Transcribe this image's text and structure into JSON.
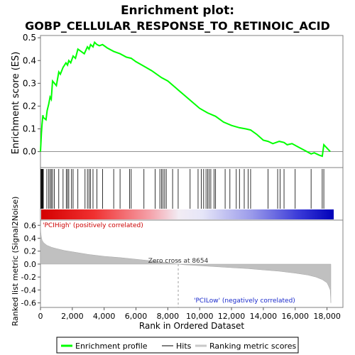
{
  "chart_data": {
    "type": "line",
    "title_line1": "Enrichment plot:",
    "title_line2": "GOBP_CELLULAR_RESPONSE_TO_RETINOIC_ACID",
    "xlabel": "Rank in Ordered Dataset",
    "xlim": [
      0,
      19000
    ],
    "x_ticks": [
      0,
      2000,
      4000,
      6000,
      8000,
      10000,
      12000,
      14000,
      16000,
      18000
    ],
    "x_tick_labels": [
      "0",
      "2,000",
      "4,000",
      "6,000",
      "8,000",
      "10,000",
      "12,000",
      "14,000",
      "16,000",
      "18,000"
    ],
    "es_panel": {
      "ylabel": "Enrichment score (ES)",
      "ylim": [
        -0.07,
        0.51
      ],
      "y_ticks": [
        0.0,
        0.1,
        0.2,
        0.3,
        0.4,
        0.5
      ],
      "y_tick_labels": [
        "0.0",
        "0.1",
        "0.2",
        "0.3",
        "0.4",
        "0.5"
      ],
      "color": "#00ff00",
      "x": [
        0,
        60,
        100,
        150,
        180,
        350,
        420,
        520,
        600,
        680,
        760,
        880,
        1000,
        1150,
        1250,
        1420,
        1600,
        1700,
        1780,
        1900,
        2050,
        2200,
        2350,
        2550,
        2750,
        2950,
        3050,
        3150,
        3300,
        3400,
        3550,
        3700,
        3900,
        4200,
        4600,
        5000,
        5400,
        5700,
        6000,
        6500,
        7000,
        7600,
        8000,
        8500,
        9000,
        9500,
        10000,
        10500,
        11000,
        11500,
        12000,
        12500,
        12900,
        13200,
        13600,
        14000,
        14300,
        14600,
        14800,
        15000,
        15300,
        15500,
        15800,
        16200,
        16600,
        17000,
        17200,
        17500,
        17700,
        17800,
        18000,
        18200
      ],
      "y": [
        0.0,
        0.08,
        0.12,
        0.16,
        0.15,
        0.14,
        0.18,
        0.21,
        0.24,
        0.23,
        0.31,
        0.3,
        0.29,
        0.35,
        0.34,
        0.37,
        0.39,
        0.38,
        0.4,
        0.39,
        0.42,
        0.41,
        0.45,
        0.44,
        0.43,
        0.46,
        0.45,
        0.47,
        0.46,
        0.48,
        0.47,
        0.465,
        0.47,
        0.455,
        0.44,
        0.43,
        0.415,
        0.41,
        0.395,
        0.375,
        0.355,
        0.325,
        0.31,
        0.28,
        0.25,
        0.22,
        0.19,
        0.17,
        0.155,
        0.13,
        0.115,
        0.105,
        0.1,
        0.095,
        0.075,
        0.05,
        0.045,
        0.035,
        0.04,
        0.045,
        0.04,
        0.03,
        0.035,
        0.02,
        0.005,
        -0.01,
        -0.005,
        -0.015,
        -0.02,
        0.03,
        0.015,
        0.0
      ]
    },
    "hits": [
      30,
      60,
      90,
      120,
      150,
      180,
      400,
      520,
      600,
      680,
      760,
      870,
      1150,
      1420,
      1620,
      1700,
      1780,
      1950,
      2050,
      2350,
      2800,
      2950,
      3050,
      3150,
      3300,
      3550,
      3900,
      4600,
      5000,
      5600,
      5700,
      6500,
      7200,
      7500,
      7600,
      7700,
      7800,
      7900,
      8300,
      8650,
      9400,
      9900,
      10100,
      10250,
      10400,
      10500,
      10600,
      10700,
      10900,
      11000,
      11600,
      11900,
      12300,
      12500,
      12800,
      13050,
      13200,
      14300,
      14900,
      15050,
      15300,
      16000,
      17000,
      17700,
      17800
    ],
    "heatmap_colorbar": "red (positive) to blue (negative)",
    "rank_panel": {
      "ylabel": "Ranked list metric (Signal2Noise)",
      "ylim": [
        -0.67,
        0.68
      ],
      "y_ticks": [
        0.6,
        0.4,
        0.2,
        0.0,
        -0.2,
        -0.4,
        -0.6
      ],
      "y_tick_labels": [
        "0.6",
        "0.4",
        "0.2",
        "0.0",
        "-0.2",
        "-0.4",
        "-0.6"
      ],
      "x": [
        0,
        20,
        50,
        100,
        200,
        400,
        700,
        1000,
        1500,
        2000,
        3000,
        4000,
        5000,
        6000,
        7000,
        8000,
        8654,
        9000,
        10000,
        11000,
        12000,
        13000,
        14000,
        15000,
        16000,
        16800,
        17300,
        17700,
        18000,
        18100,
        18200,
        18240
      ],
      "values": [
        0.61,
        0.5,
        0.43,
        0.37,
        0.33,
        0.29,
        0.26,
        0.24,
        0.21,
        0.19,
        0.15,
        0.12,
        0.1,
        0.075,
        0.05,
        0.02,
        0.0,
        -0.01,
        -0.025,
        -0.04,
        -0.055,
        -0.07,
        -0.09,
        -0.11,
        -0.14,
        -0.17,
        -0.2,
        -0.24,
        -0.29,
        -0.34,
        -0.4,
        -0.6
      ],
      "zero_cross_text": "Zero cross at 8654",
      "zero_cross_rank": 8654,
      "pos_label": "'PCIHigh' (positively correlated)",
      "neg_label": "'PCILow' (negatively correlated)"
    },
    "legend": {
      "placement": "bottom",
      "entries": [
        {
          "label": "Enrichment profile",
          "color": "#00ff00"
        },
        {
          "label": "Hits",
          "color": "#000000"
        },
        {
          "label": "Ranking metric scores",
          "color": "#c8c8c8"
        }
      ]
    },
    "colors": {
      "profile": "#00ff00",
      "rank_fill": "#c0c0c0",
      "pos_text": "#cc0000",
      "neg_text": "#1a2acc"
    }
  }
}
